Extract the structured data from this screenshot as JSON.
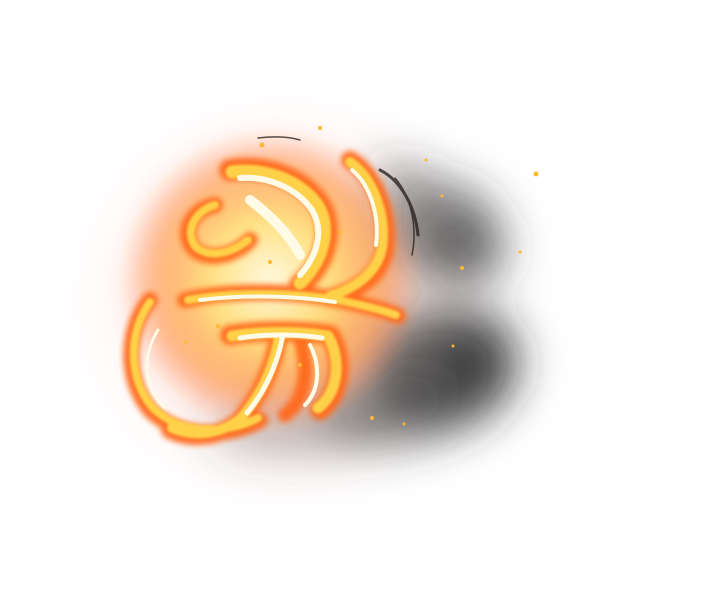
{
  "image": {
    "subject": "fire-brush-glyph",
    "background_color": "#ffffff",
    "palette": {
      "core": "#fff8d6",
      "hot": "#ffd14a",
      "flame": "#ff8a1e",
      "ember": "#ff4b1a",
      "glow": "#ffb0a0",
      "smoke": "#2a2a2a"
    }
  }
}
